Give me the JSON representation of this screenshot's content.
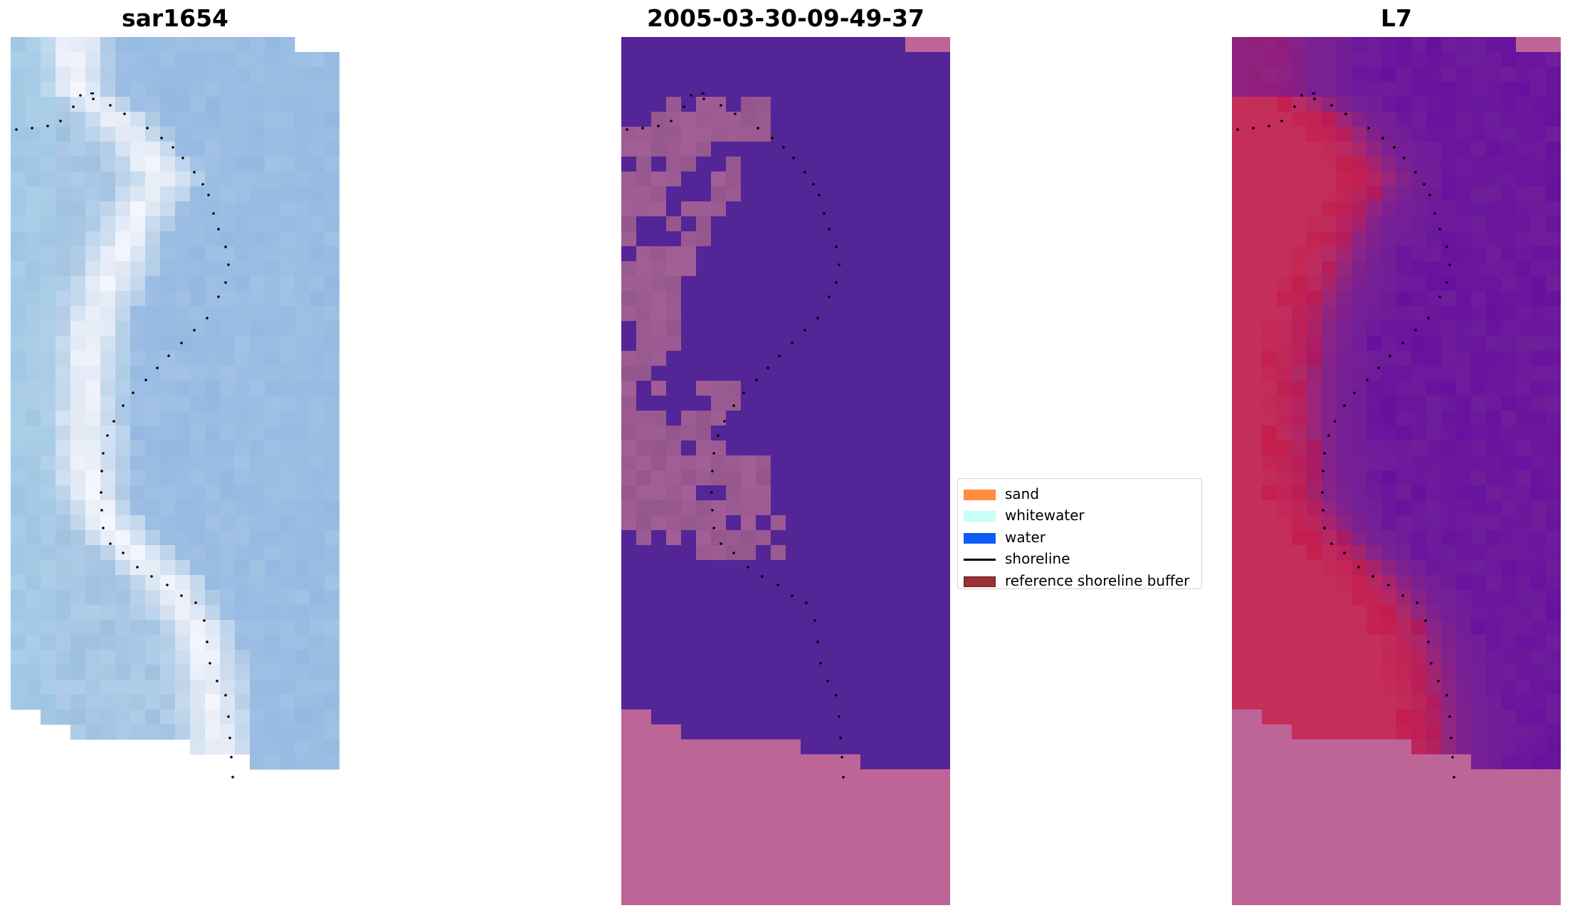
{
  "panels": [
    {
      "id": "rgb",
      "title": "sar1654"
    },
    {
      "id": "classified",
      "title": "2005-03-30-09-49-37"
    },
    {
      "id": "index",
      "title": "L7"
    }
  ],
  "legend": {
    "items": [
      {
        "label": "sand",
        "kind": "patch",
        "color": "#ff8c3f"
      },
      {
        "label": "whitewater",
        "kind": "patch",
        "color": "#c8fff7"
      },
      {
        "label": "water",
        "kind": "patch",
        "color": "#0d5cf6"
      },
      {
        "label": "shoreline",
        "kind": "line",
        "color": "#000000"
      },
      {
        "label": "reference shoreline buffer",
        "kind": "patch",
        "color": "#9b3238"
      }
    ]
  },
  "colors": {
    "rgb_base": "#a6c6e4",
    "rgb_whitewater": "#f2f4fb",
    "classified_water": "#542596",
    "classified_land": "#9b5a92",
    "nodata": "#bd6596",
    "index_land": "#c42e5a",
    "index_water": "#6f1e9a",
    "shoreline_dots": "#000000"
  }
}
